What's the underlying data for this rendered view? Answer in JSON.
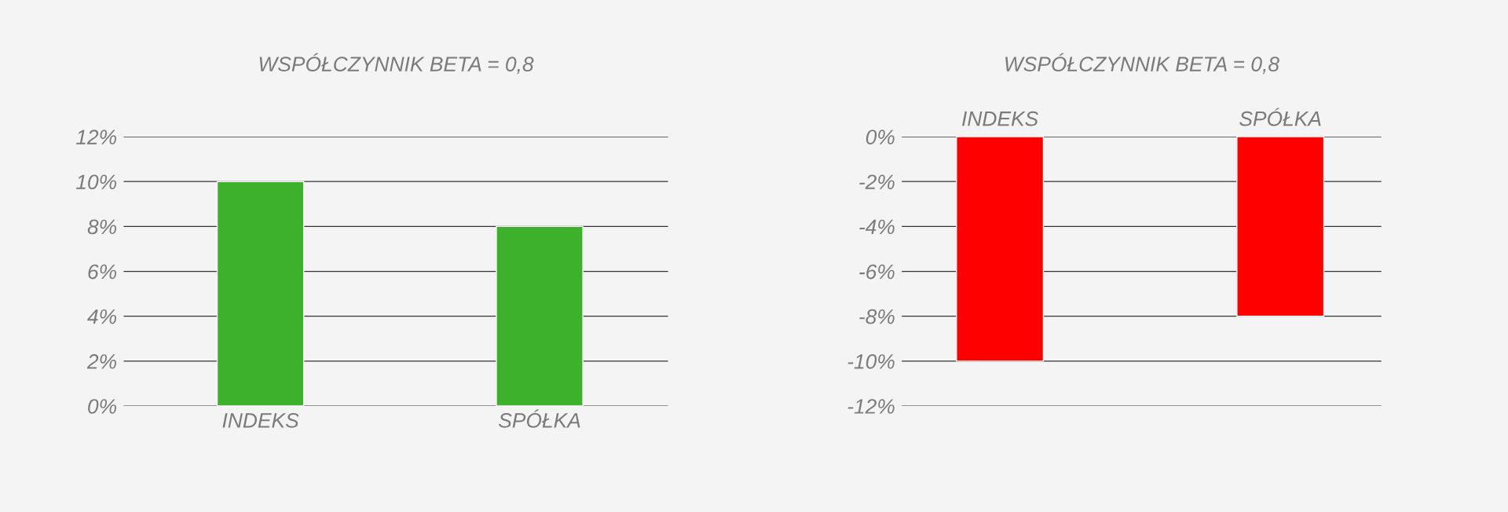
{
  "chart_data": [
    {
      "type": "bar",
      "title": "WSPÓŁCZYNNIK BETA = 0,8",
      "categories": [
        "INDEKS",
        "SPÓŁKA"
      ],
      "values": [
        10,
        8
      ],
      "color": "#3db12b",
      "ylim": [
        0,
        12
      ],
      "yticks": [
        {
          "value": 0,
          "label": "0%"
        },
        {
          "value": 2,
          "label": "2%"
        },
        {
          "value": 4,
          "label": "4%"
        },
        {
          "value": 6,
          "label": "6%"
        },
        {
          "value": 8,
          "label": "8%"
        },
        {
          "value": 10,
          "label": "10%"
        },
        {
          "value": 12,
          "label": "12%"
        }
      ],
      "grid": "y"
    },
    {
      "type": "bar",
      "title": "WSPÓŁCZYNNIK BETA = 0,8",
      "categories": [
        "INDEKS",
        "SPÓŁKA"
      ],
      "values": [
        -10,
        -8
      ],
      "color": "#ff0000",
      "ylim": [
        -12,
        0
      ],
      "yticks": [
        {
          "value": 0,
          "label": "0%"
        },
        {
          "value": -2,
          "label": "-2%"
        },
        {
          "value": -4,
          "label": "-4%"
        },
        {
          "value": -6,
          "label": "-6%"
        },
        {
          "value": -8,
          "label": "-8%"
        },
        {
          "value": -10,
          "label": "-10%"
        },
        {
          "value": -12,
          "label": "-12%"
        }
      ],
      "grid": "y"
    }
  ]
}
